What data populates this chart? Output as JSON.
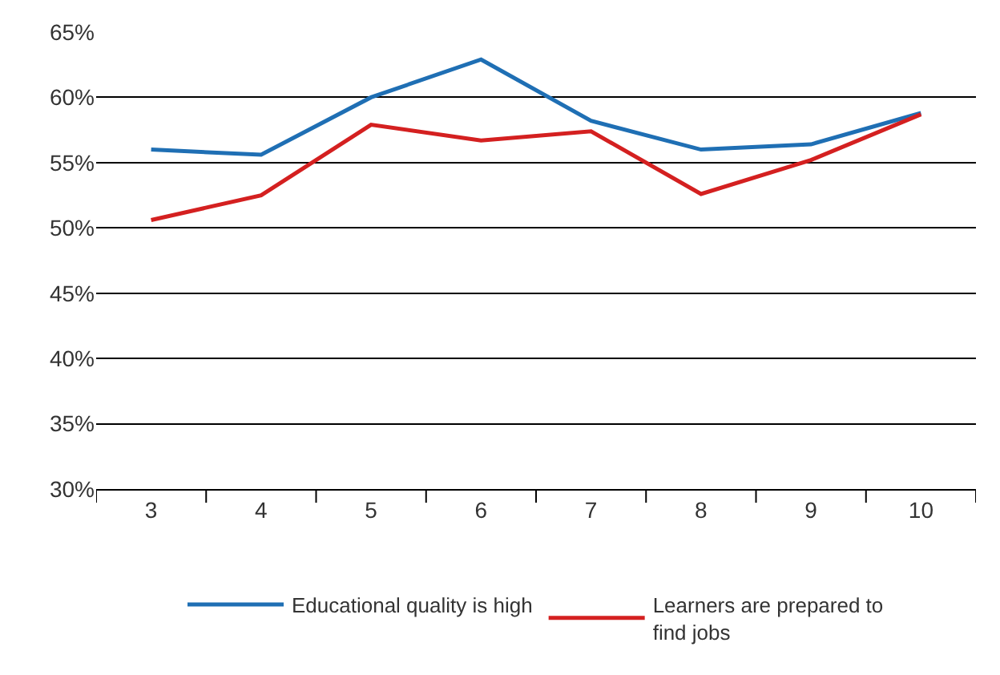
{
  "chart_data": {
    "type": "line",
    "categories": [
      "3",
      "4",
      "5",
      "6",
      "7",
      "8",
      "9",
      "10"
    ],
    "series": [
      {
        "name": "Educational quality is high",
        "color": "#1f6fb4",
        "values": [
          56.0,
          55.6,
          60.0,
          62.9,
          58.2,
          56.0,
          56.4,
          58.8
        ]
      },
      {
        "name": "Learners are prepared to find jobs",
        "color": "#d42020",
        "values": [
          50.6,
          52.5,
          57.9,
          56.7,
          57.4,
          52.6,
          55.2,
          58.7
        ]
      }
    ],
    "ylim": [
      30,
      65
    ],
    "yticks": [
      {
        "value": 30,
        "label": "30%"
      },
      {
        "value": 35,
        "label": "35%"
      },
      {
        "value": 40,
        "label": "40%"
      },
      {
        "value": 45,
        "label": "45%"
      },
      {
        "value": 50,
        "label": "50%"
      },
      {
        "value": 55,
        "label": "55%"
      },
      {
        "value": 60,
        "label": "60%"
      },
      {
        "value": 65,
        "label": "65%"
      }
    ],
    "grid": "y",
    "legend": "bottom",
    "marker": "none",
    "line_style": "solid"
  }
}
